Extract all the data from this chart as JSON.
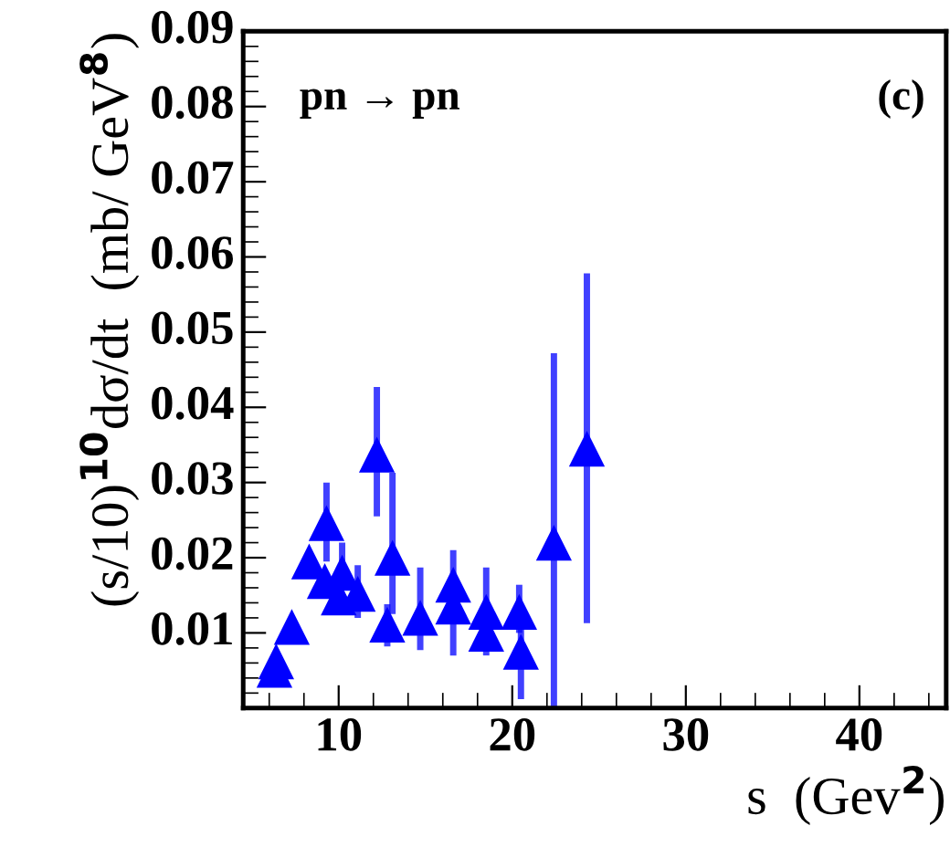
{
  "chart_data": {
    "type": "scatter",
    "xlabel": "s  (Gev$^{2}$)",
    "ylabel": "(s/10)$^{10}$dσ/dt  (mb/ GeV$^{8}$)",
    "annotations": [
      "pn → pn",
      "(c)"
    ],
    "x": [
      6.3,
      6.4,
      7.3,
      8.3,
      9.3,
      9.2,
      10.2,
      10.0,
      10.7,
      11.1,
      12.2,
      13.1,
      12.8,
      14.7,
      16.6,
      16.6,
      18.5,
      18.5,
      20.4,
      20.5,
      22.4,
      24.3
    ],
    "series": [
      {
        "color": "#0000ff",
        "values": [
          0.0051,
          0.0062,
          0.0108,
          0.0195,
          0.0246,
          0.0169,
          0.018,
          0.0147,
          null,
          0.0152,
          0.0337,
          0.02,
          0.0111,
          0.012,
          0.0164,
          0.0135,
          0.0128,
          0.0099,
          0.0128,
          0.0075,
          0.022,
          0.0345
        ],
        "errors": [
          null,
          null,
          null,
          null,
          [
            0.0195,
            0.03
          ],
          null,
          [
            0.018,
            0.022
          ],
          null,
          null,
          [
            0.012,
            0.019
          ],
          [
            0.0255,
            0.0427
          ],
          [
            0.0125,
            0.0313
          ],
          [
            0.0082,
            0.0138
          ],
          [
            0.0077,
            0.0187
          ],
          [
            0.0164,
            0.021
          ],
          [
            0.007,
            0.017
          ],
          [
            0.0128,
            0.0187
          ],
          [
            0.007,
            0.0135
          ],
          [
            0.01,
            0.0164
          ],
          [
            0.0012,
            0.0105
          ],
          [
            0.0,
            0.0472
          ],
          [
            0.0113,
            0.0578
          ]
        ]
      }
    ],
    "marker": "triangle",
    "xlim": [
      4.5,
      45
    ],
    "ylim": [
      0,
      0.09
    ],
    "xticks": [
      10,
      20,
      30,
      40
    ],
    "yticks": [
      0.01,
      0.02,
      0.03,
      0.04,
      0.05,
      0.06,
      0.07,
      0.08,
      0.09
    ],
    "grid": false,
    "legend": false
  }
}
